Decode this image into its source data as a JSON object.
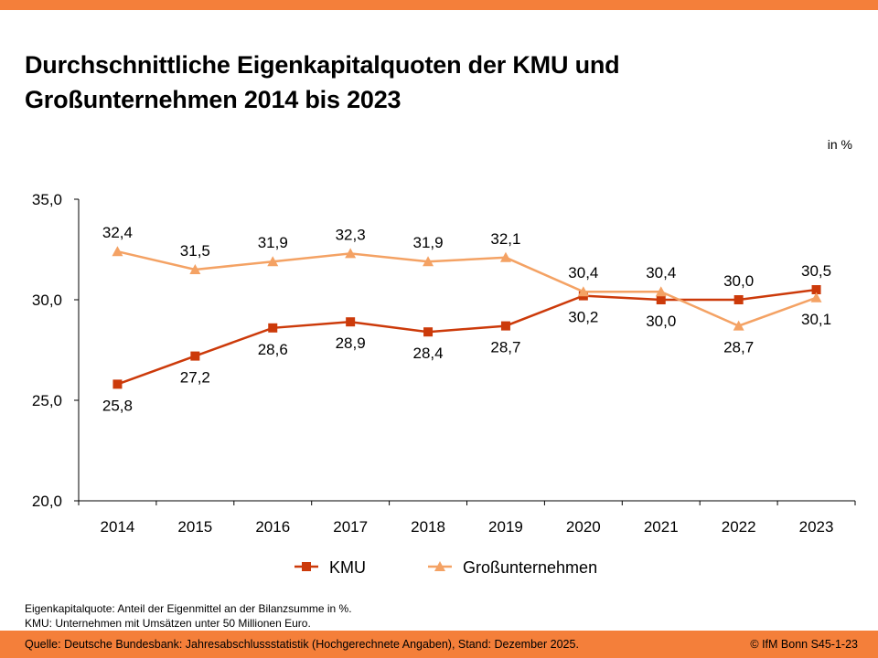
{
  "header": {
    "title": "Durchschnittliche Eigenkapitalquoten der KMU und Großunternehmen 2014 bis 2023",
    "unit": "in %"
  },
  "notes": [
    "Eigenkapitalquote: Anteil der Eigenmittel an der Bilanzsumme in %.",
    "KMU: Unternehmen mit Umsätzen unter 50 Millionen Euro."
  ],
  "footer": {
    "source": "Quelle: Deutsche Bundesbank: Jahresabschlussstatistik (Hochgerechnete Angaben), Stand: Dezember 2025.",
    "copyright": "© IfM Bonn  S45-1-23"
  },
  "colors": {
    "brand": "#F47F3A",
    "kmu": "#CC3A0A",
    "gross": "#F4A264"
  },
  "chart_data": {
    "type": "line",
    "title": "Durchschnittliche Eigenkapitalquoten der KMU und Großunternehmen 2014 bis 2023",
    "xlabel": "",
    "ylabel": "in %",
    "categories": [
      "2014",
      "2015",
      "2016",
      "2017",
      "2018",
      "2019",
      "2020",
      "2021",
      "2022",
      "2023"
    ],
    "ylim": [
      20.0,
      35.0
    ],
    "yticks": [
      "20,0",
      "25,0",
      "30,0",
      "35,0"
    ],
    "ytick_values": [
      20,
      25,
      30,
      35
    ],
    "grid": false,
    "legend_position": "bottom",
    "series": [
      {
        "name": "KMU",
        "marker": "square",
        "values": [
          25.8,
          27.2,
          28.6,
          28.9,
          28.4,
          28.7,
          30.2,
          30.0,
          30.0,
          30.5
        ],
        "labels": [
          "25,8",
          "27,2",
          "28,6",
          "28,9",
          "28,4",
          "28,7",
          "30,2",
          "30,0",
          "30,0",
          "30,5"
        ],
        "label_side": [
          "below",
          "below",
          "below",
          "below",
          "below",
          "below",
          "below",
          "below",
          "above",
          "above"
        ]
      },
      {
        "name": "Großunternehmen",
        "marker": "triangle",
        "values": [
          32.4,
          31.5,
          31.9,
          32.3,
          31.9,
          32.1,
          30.4,
          30.4,
          28.7,
          30.1
        ],
        "labels": [
          "32,4",
          "31,5",
          "31,9",
          "32,3",
          "31,9",
          "32,1",
          "30,4",
          "30,4",
          "28,7",
          "30,1"
        ],
        "label_side": [
          "above",
          "above",
          "above",
          "above",
          "above",
          "above",
          "above",
          "above",
          "below",
          "below"
        ]
      }
    ]
  }
}
